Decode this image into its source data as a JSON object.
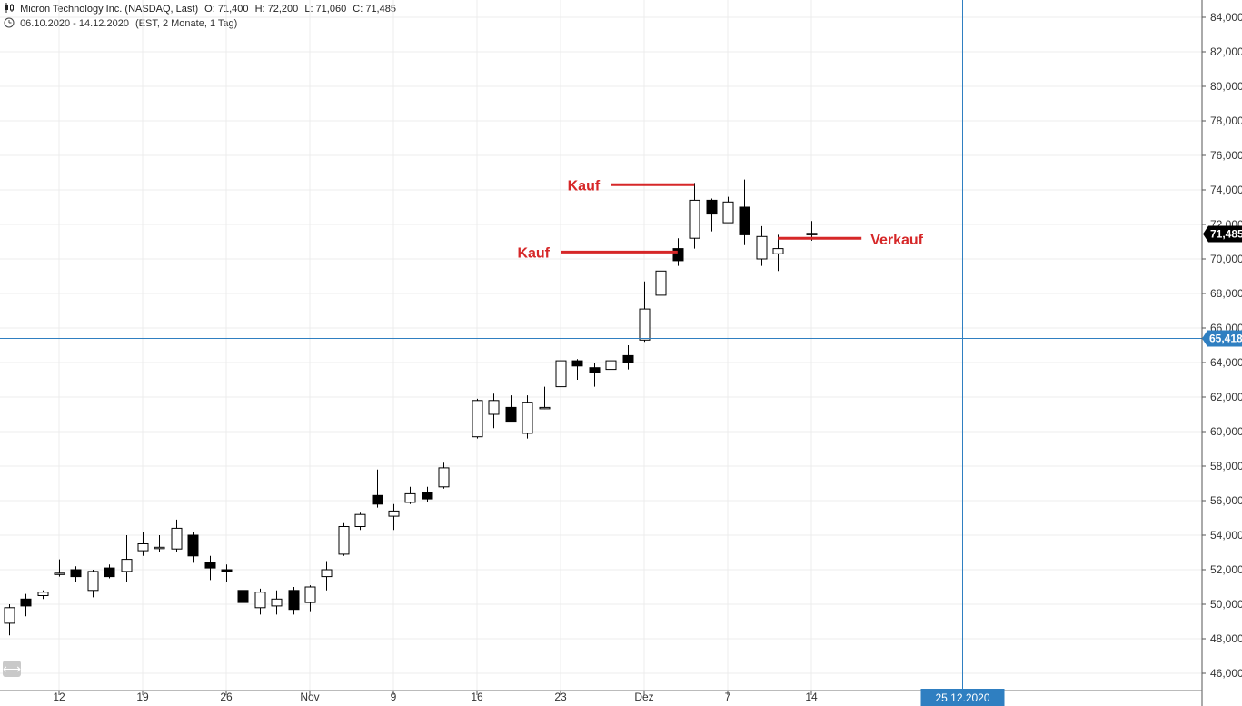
{
  "header": {
    "symbol": "Micron Technology Inc. (NASDAQ, Last)",
    "open": "O: 71,400",
    "high": "H: 72,200",
    "low": "L: 71,060",
    "close": "C: 71,485",
    "period": "06.10.2020 - 14.12.2020",
    "settings": "(EST, 2 Monate, 1 Tag)",
    "icon_chart": "candlestick-icon",
    "icon_clock": "clock-icon",
    "icon_scroll": "horizontal-scroll-icon"
  },
  "chart_data": {
    "type": "candlestick",
    "ylim": [
      45.2,
      85
    ],
    "y_ticks": [
      "46,000",
      "48,000",
      "50,000",
      "52,000",
      "54,000",
      "56,000",
      "58,000",
      "60,000",
      "62,000",
      "64,000",
      "66,000",
      "68,000",
      "70,000",
      "72,000",
      "74,000",
      "76,000",
      "78,000",
      "80,000",
      "82,000",
      "84,000"
    ],
    "x_ticks": [
      {
        "label": "12",
        "date": "2020-10-12"
      },
      {
        "label": "19",
        "date": "2020-10-19"
      },
      {
        "label": "26",
        "date": "2020-10-26"
      },
      {
        "label": "Nov",
        "date": "2020-11-02"
      },
      {
        "label": "9",
        "date": "2020-11-09"
      },
      {
        "label": "16",
        "date": "2020-11-16"
      },
      {
        "label": "23",
        "date": "2020-11-23"
      },
      {
        "label": "Dez",
        "date": "2020-11-30"
      },
      {
        "label": "7",
        "date": "2020-12-07"
      },
      {
        "label": "14",
        "date": "2020-12-14"
      }
    ],
    "candles": [
      {
        "date": "2020-10-06",
        "open": 48.5,
        "high": 49.0,
        "low": 48.3,
        "close": 48.5
      },
      {
        "date": "2020-10-07",
        "open": 48.9,
        "high": 50.0,
        "low": 48.2,
        "close": 49.8
      },
      {
        "date": "2020-10-08",
        "open": 50.3,
        "high": 50.6,
        "low": 49.3,
        "close": 49.9
      },
      {
        "date": "2020-10-09",
        "open": 50.5,
        "high": 50.8,
        "low": 50.3,
        "close": 50.7
      },
      {
        "date": "2020-10-12",
        "open": 51.8,
        "high": 52.6,
        "low": 51.6,
        "close": 51.8
      },
      {
        "date": "2020-10-13",
        "open": 52.0,
        "high": 52.2,
        "low": 51.3,
        "close": 51.6
      },
      {
        "date": "2020-10-14",
        "open": 50.8,
        "high": 52.0,
        "low": 50.4,
        "close": 51.9
      },
      {
        "date": "2020-10-15",
        "open": 52.1,
        "high": 52.3,
        "low": 51.5,
        "close": 51.6
      },
      {
        "date": "2020-10-16",
        "open": 51.9,
        "high": 54.0,
        "low": 51.3,
        "close": 52.6
      },
      {
        "date": "2020-10-19",
        "open": 53.1,
        "high": 54.2,
        "low": 52.8,
        "close": 53.5
      },
      {
        "date": "2020-10-20",
        "open": 53.3,
        "high": 54.0,
        "low": 53.0,
        "close": 53.3
      },
      {
        "date": "2020-10-21",
        "open": 53.2,
        "high": 54.9,
        "low": 53.0,
        "close": 54.4
      },
      {
        "date": "2020-10-22",
        "open": 54.0,
        "high": 54.2,
        "low": 52.4,
        "close": 52.8
      },
      {
        "date": "2020-10-23",
        "open": 52.4,
        "high": 52.8,
        "low": 51.4,
        "close": 52.1
      },
      {
        "date": "2020-10-26",
        "open": 52.0,
        "high": 52.3,
        "low": 51.3,
        "close": 51.9
      },
      {
        "date": "2020-10-27",
        "open": 50.8,
        "high": 51.0,
        "low": 49.6,
        "close": 50.1
      },
      {
        "date": "2020-10-28",
        "open": 49.8,
        "high": 50.9,
        "low": 49.4,
        "close": 50.7
      },
      {
        "date": "2020-10-29",
        "open": 49.9,
        "high": 50.8,
        "low": 49.4,
        "close": 50.3
      },
      {
        "date": "2020-10-30",
        "open": 50.8,
        "high": 51.0,
        "low": 49.4,
        "close": 49.7
      },
      {
        "date": "2020-11-02",
        "open": 50.1,
        "high": 51.1,
        "low": 49.6,
        "close": 51.0
      },
      {
        "date": "2020-11-03",
        "open": 51.6,
        "high": 52.5,
        "low": 50.8,
        "close": 52.0
      },
      {
        "date": "2020-11-04",
        "open": 52.9,
        "high": 54.7,
        "low": 52.8,
        "close": 54.5
      },
      {
        "date": "2020-11-05",
        "open": 54.5,
        "high": 55.3,
        "low": 54.3,
        "close": 55.2
      },
      {
        "date": "2020-11-06",
        "open": 56.3,
        "high": 57.8,
        "low": 55.6,
        "close": 55.8
      },
      {
        "date": "2020-11-09",
        "open": 55.1,
        "high": 55.8,
        "low": 54.3,
        "close": 55.4
      },
      {
        "date": "2020-11-10",
        "open": 55.9,
        "high": 56.8,
        "low": 55.8,
        "close": 56.4
      },
      {
        "date": "2020-11-11",
        "open": 56.5,
        "high": 56.8,
        "low": 55.9,
        "close": 56.1
      },
      {
        "date": "2020-11-12",
        "open": 56.8,
        "high": 58.2,
        "low": 56.7,
        "close": 57.9
      },
      {
        "date": "2020-11-16",
        "open": 59.7,
        "high": 61.9,
        "low": 59.6,
        "close": 61.8
      },
      {
        "date": "2020-11-17",
        "open": 61.0,
        "high": 62.2,
        "low": 60.2,
        "close": 61.8
      },
      {
        "date": "2020-11-18",
        "open": 61.4,
        "high": 62.1,
        "low": 60.6,
        "close": 60.6
      },
      {
        "date": "2020-11-19",
        "open": 59.9,
        "high": 62.1,
        "low": 59.6,
        "close": 61.7
      },
      {
        "date": "2020-11-20",
        "open": 61.4,
        "high": 62.6,
        "low": 61.3,
        "close": 61.4
      },
      {
        "date": "2020-11-23",
        "open": 62.6,
        "high": 64.3,
        "low": 62.2,
        "close": 64.1
      },
      {
        "date": "2020-11-24",
        "open": 64.1,
        "high": 64.2,
        "low": 63.0,
        "close": 63.8
      },
      {
        "date": "2020-11-25",
        "open": 63.7,
        "high": 64.0,
        "low": 62.6,
        "close": 63.4
      },
      {
        "date": "2020-11-26",
        "open": 63.6,
        "high": 64.7,
        "low": 63.4,
        "close": 64.1
      },
      {
        "date": "2020-11-27",
        "open": 64.4,
        "high": 65.0,
        "low": 63.6,
        "close": 64.0
      },
      {
        "date": "2020-11-30",
        "open": 65.3,
        "high": 68.7,
        "low": 65.2,
        "close": 67.1
      },
      {
        "date": "2020-12-01",
        "open": 67.9,
        "high": 69.3,
        "low": 66.7,
        "close": 69.3
      },
      {
        "date": "2020-12-02",
        "open": 70.6,
        "high": 71.2,
        "low": 69.6,
        "close": 69.9
      },
      {
        "date": "2020-12-03",
        "open": 71.2,
        "high": 74.4,
        "low": 70.6,
        "close": 73.4
      },
      {
        "date": "2020-12-04",
        "open": 73.4,
        "high": 73.5,
        "low": 71.6,
        "close": 72.6
      },
      {
        "date": "2020-12-07",
        "open": 72.1,
        "high": 73.6,
        "low": 72.1,
        "close": 73.3
      },
      {
        "date": "2020-12-08",
        "open": 73.0,
        "high": 74.6,
        "low": 70.8,
        "close": 71.4
      },
      {
        "date": "2020-12-09",
        "open": 70.0,
        "high": 71.9,
        "low": 69.6,
        "close": 71.3
      },
      {
        "date": "2020-12-10",
        "open": 70.3,
        "high": 71.4,
        "low": 69.3,
        "close": 70.6
      },
      {
        "date": "2020-12-14",
        "open": 71.4,
        "high": 72.2,
        "low": 71.06,
        "close": 71.485
      }
    ],
    "annotations": [
      {
        "label": "Kauf",
        "line_from": "2020-11-23",
        "line_to": "2020-12-02",
        "price": 70.4,
        "side": "left"
      },
      {
        "label": "Kauf",
        "line_from": "2020-11-26",
        "line_to": "2020-12-03",
        "price": 74.3,
        "side": "left"
      },
      {
        "label": "Verkauf",
        "line_from": "2020-12-10",
        "line_to": "2020-12-17",
        "price": 71.2,
        "side": "right"
      }
    ],
    "last_price_tag": "71,485",
    "crosshair": {
      "date": "2020-12-25",
      "price": 65.418,
      "price_label": "65,418",
      "date_label": "25.12.2020"
    },
    "colors": {
      "up": "#ffffff",
      "down": "#000000",
      "annotation": "#d62728",
      "crosshair": "#2f7fc1",
      "grid": "#ececec"
    }
  }
}
